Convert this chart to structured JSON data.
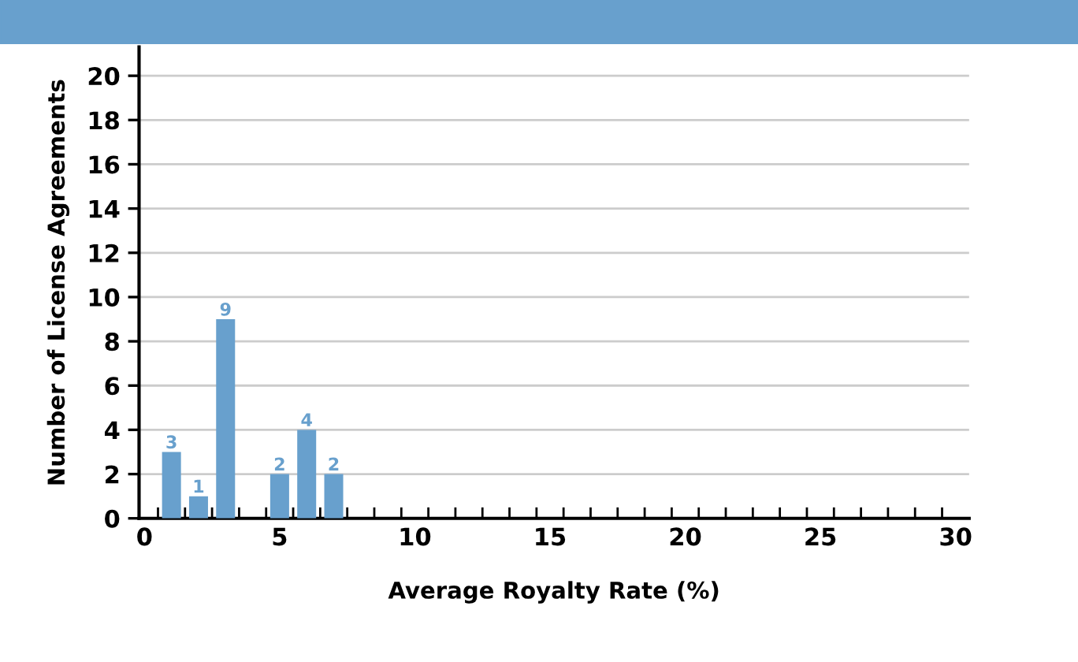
{
  "chart_data": {
    "type": "bar",
    "xlabel": "Average Royalty Rate (%)",
    "ylabel": "Number of License Agreements",
    "x": [
      1,
      2,
      3,
      5,
      6,
      7
    ],
    "values": [
      3,
      1,
      9,
      2,
      4,
      2
    ],
    "color": "#68a0cd",
    "data_labels": true,
    "xlim": [
      -0.2,
      30.5
    ],
    "xticks": [
      0,
      5,
      10,
      15,
      20,
      25,
      30,
      {
        "value": 0.5,
        "label": null
      },
      {
        "value": 1.5,
        "label": null
      },
      {
        "value": 2.5,
        "label": null
      },
      {
        "value": 3.5,
        "label": null
      },
      {
        "value": 4.5,
        "label": null
      },
      {
        "value": 5.5,
        "label": null
      },
      {
        "value": 6.5,
        "label": null
      },
      {
        "value": 7.5,
        "label": null
      },
      {
        "value": 8.5,
        "label": null
      },
      {
        "value": 9.5,
        "label": null
      },
      {
        "value": 10.5,
        "label": null
      },
      {
        "value": 11.5,
        "label": null
      },
      {
        "value": 12.5,
        "label": null
      },
      {
        "value": 13.5,
        "label": null
      },
      {
        "value": 14.5,
        "label": null
      },
      {
        "value": 15.5,
        "label": null
      },
      {
        "value": 16.5,
        "label": null
      },
      {
        "value": 17.5,
        "label": null
      },
      {
        "value": 18.5,
        "label": null
      },
      {
        "value": 19.5,
        "label": null
      },
      {
        "value": 20.5,
        "label": null
      },
      {
        "value": 21.5,
        "label": null
      },
      {
        "value": 22.5,
        "label": null
      },
      {
        "value": 23.5,
        "label": null
      },
      {
        "value": 24.5,
        "label": null
      },
      {
        "value": 25.5,
        "label": null
      },
      {
        "value": 26.5,
        "label": null
      },
      {
        "value": 27.5,
        "label": null
      },
      {
        "value": 28.5,
        "label": null
      },
      {
        "value": 29.5,
        "label": null
      }
    ],
    "ylim": [
      0,
      21.3
    ],
    "yticks": [
      0,
      2,
      4,
      6,
      8,
      10,
      12,
      14,
      16,
      18,
      20
    ],
    "grid": "y"
  }
}
